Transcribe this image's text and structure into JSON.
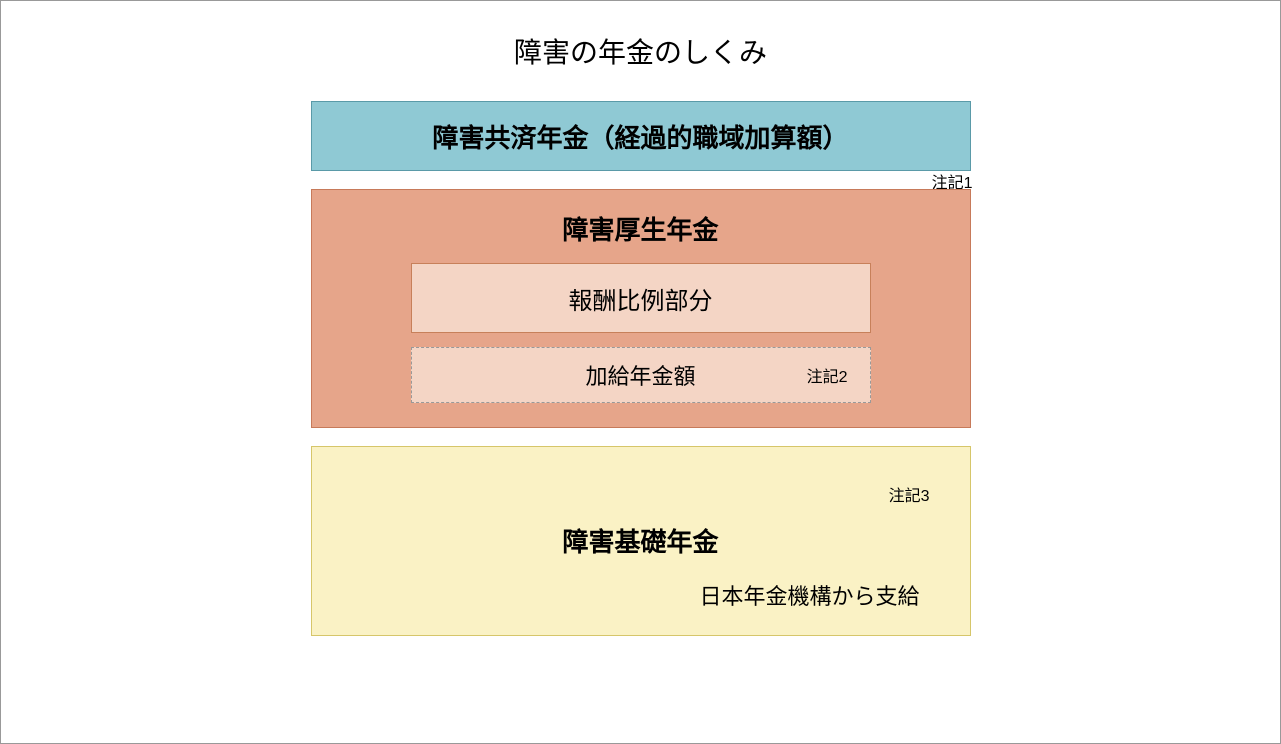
{
  "title": "障害の年金のしくみ",
  "tiers": {
    "top": {
      "label": "障害共済年金（経過的職域加算額）",
      "note": "注記1",
      "bg_color": "#8fc9d4",
      "border_color": "#5a9aa8"
    },
    "middle": {
      "label": "障害厚生年金",
      "bg_color": "#e6a58a",
      "border_color": "#c77a5a",
      "sub1": {
        "label": "報酬比例部分",
        "bg_color": "#f4d5c5",
        "border_color": "#c7805a"
      },
      "sub2": {
        "label": "加給年金額",
        "note": "注記2",
        "bg_color": "#f4d5c5",
        "border_color": "#999999"
      }
    },
    "bottom": {
      "label": "障害基礎年金",
      "subtext": "日本年金機構から支給",
      "note": "注記3",
      "bg_color": "#faf2c5",
      "border_color": "#d6c66a"
    }
  }
}
